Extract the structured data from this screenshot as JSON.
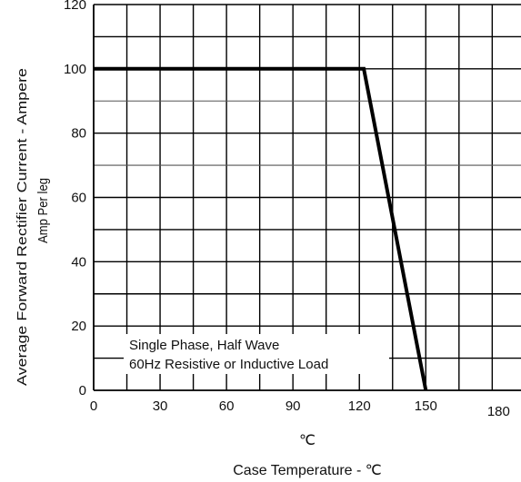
{
  "chart_data": {
    "type": "line",
    "title": "",
    "xlabel": "Case Temperature -  ℃",
    "x_unit_mark": "℃",
    "ylabel_line1": "Average  Forward  Rectifier  Current - Ampere",
    "ylabel_line2": "Amp  Per leg",
    "xlim": [
      0,
      193
    ],
    "ylim": [
      0,
      120
    ],
    "x_ticks": [
      0,
      30,
      60,
      90,
      120,
      150,
      180
    ],
    "x_tick_labels": [
      "0",
      "30",
      "60",
      "90",
      "120",
      "150",
      "180"
    ],
    "y_ticks": [
      0,
      20,
      40,
      60,
      80,
      100,
      120
    ],
    "y_tick_labels": [
      "0",
      "20",
      "40",
      "60",
      "80",
      "100",
      "120"
    ],
    "grid": true,
    "legend": "none",
    "annotation_lines": [
      "Single Phase, Half Wave",
      "60Hz Resistive or Inductive Load"
    ],
    "series": [
      {
        "x": [
          0,
          122,
          150
        ],
        "y": [
          100,
          100,
          0
        ]
      }
    ]
  }
}
